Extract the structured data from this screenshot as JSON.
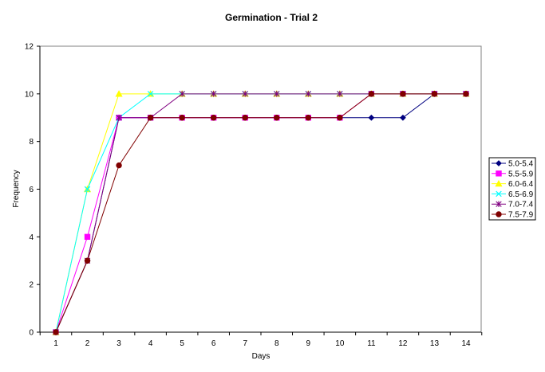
{
  "chart_data": {
    "type": "line",
    "title": "Germination - Trial 2",
    "xlabel": "Days",
    "ylabel": "Frequency",
    "x": [
      1,
      2,
      3,
      4,
      5,
      6,
      7,
      8,
      9,
      10,
      11,
      12,
      13,
      14
    ],
    "ylim": [
      0,
      12
    ],
    "yticks": [
      0,
      2,
      4,
      6,
      8,
      10,
      12
    ],
    "grid": false,
    "legend_position": "right",
    "series": [
      {
        "name": "5.0-5.4",
        "color": "#000080",
        "marker": "diamond",
        "values": [
          0,
          3,
          9,
          9,
          9,
          9,
          9,
          9,
          9,
          9,
          9,
          9,
          10,
          10
        ]
      },
      {
        "name": "5.5-5.9",
        "color": "#ff00ff",
        "marker": "square",
        "values": [
          0,
          4,
          9,
          9,
          9,
          9,
          9,
          9,
          9,
          9,
          10,
          10,
          10,
          10
        ]
      },
      {
        "name": "6.0-6.4",
        "color": "#ffff00",
        "marker": "triangle",
        "values": [
          0,
          6,
          10,
          10,
          10,
          10,
          10,
          10,
          10,
          10,
          10,
          10,
          10,
          10
        ]
      },
      {
        "name": "6.5-6.9",
        "color": "#00ffff",
        "marker": "x",
        "values": [
          0,
          6,
          9,
          10,
          10,
          10,
          10,
          10,
          10,
          10,
          10,
          10,
          10,
          10
        ]
      },
      {
        "name": "7.0-7.4",
        "color": "#800080",
        "marker": "star",
        "values": [
          0,
          3,
          9,
          9,
          10,
          10,
          10,
          10,
          10,
          10,
          10,
          10,
          10,
          10
        ]
      },
      {
        "name": "7.5-7.9",
        "color": "#800000",
        "marker": "circle",
        "values": [
          0,
          3,
          7,
          9,
          9,
          9,
          9,
          9,
          9,
          9,
          10,
          10,
          10,
          10
        ]
      }
    ]
  }
}
